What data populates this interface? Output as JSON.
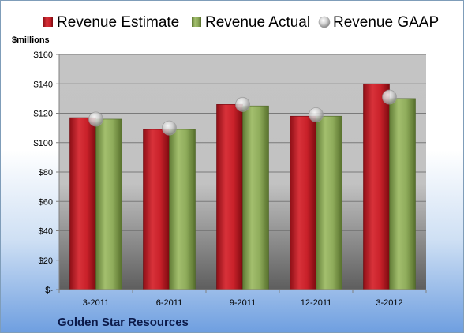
{
  "chart_data": {
    "type": "bar",
    "categories": [
      "3-2011",
      "6-2011",
      "9-2011",
      "12-2011",
      "3-2012"
    ],
    "series": [
      {
        "name": "Revenue Estimate",
        "kind": "bar",
        "color": "#c0202a",
        "values": [
          117,
          109,
          126,
          118,
          140
        ]
      },
      {
        "name": "Revenue Actual",
        "kind": "bar",
        "color": "#8aa65a",
        "values": [
          116,
          109,
          125,
          118,
          130
        ]
      },
      {
        "name": "Revenue GAAP",
        "kind": "marker",
        "color": "#c8c8c8",
        "values": [
          116,
          110,
          126,
          119,
          131
        ]
      }
    ],
    "ylabel": "$millions",
    "ylim": [
      0,
      160
    ],
    "yticks": [
      0,
      20,
      40,
      60,
      80,
      100,
      120,
      140,
      160
    ],
    "ytick_labels": [
      "$-",
      "$20",
      "$40",
      "$60",
      "$80",
      "$100",
      "$120",
      "$140",
      "$160"
    ],
    "grid": true,
    "legend_position": "top",
    "footer": "Golden Star Resources"
  }
}
